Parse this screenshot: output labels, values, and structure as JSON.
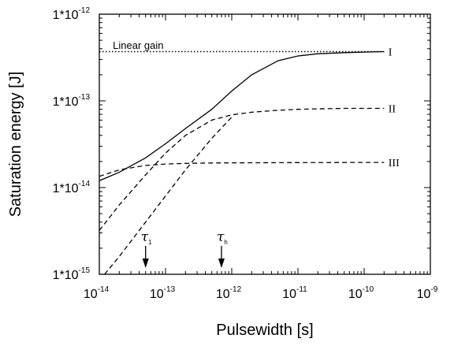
{
  "chart_data": {
    "type": "line",
    "xscale": "log",
    "yscale": "log",
    "xlim": [
      1e-14,
      1e-09
    ],
    "ylim": [
      1e-15,
      1e-12
    ],
    "xlabel": "Pulsewidth [s]",
    "ylabel": "Saturation energy [J]",
    "x_tick_labels": [
      {
        "value": 1e-14,
        "base": "10",
        "exp": "-14"
      },
      {
        "value": 1e-13,
        "base": "10",
        "exp": "-13"
      },
      {
        "value": 1e-12,
        "base": "10",
        "exp": "-12"
      },
      {
        "value": 1e-11,
        "base": "10",
        "exp": "-11"
      },
      {
        "value": 1e-10,
        "base": "10",
        "exp": "-10"
      },
      {
        "value": 1e-09,
        "base": "10",
        "exp": "-9"
      }
    ],
    "y_tick_labels": [
      {
        "value": 1e-15,
        "base": "1*10",
        "exp": "-15"
      },
      {
        "value": 1e-14,
        "base": "1*10",
        "exp": "-14"
      },
      {
        "value": 1e-13,
        "base": "1*10",
        "exp": "-13"
      },
      {
        "value": 1e-12,
        "base": "1*10",
        "exp": "-12"
      }
    ],
    "series": [
      {
        "name": "I",
        "style": "solid",
        "x": [
          1e-14,
          2e-14,
          5e-14,
          1e-13,
          2e-13,
          5e-13,
          1e-12,
          2e-12,
          5e-12,
          1e-11,
          2e-11,
          5e-11,
          1e-10,
          2e-10
        ],
        "y": [
          1.2e-14,
          1.5e-14,
          2.2e-14,
          3.2e-14,
          4.8e-14,
          8e-14,
          1.3e-13,
          2e-13,
          2.9e-13,
          3.3e-13,
          3.5e-13,
          3.6e-13,
          3.65e-13,
          3.7e-13
        ]
      },
      {
        "name": "II",
        "style": "dashed",
        "x": [
          1e-14,
          2e-14,
          5e-14,
          1e-13,
          2e-13,
          5e-13,
          1e-12,
          2e-12,
          5e-12,
          1e-11,
          2e-11,
          5e-11,
          1e-10,
          2e-10
        ],
        "y": [
          3.2e-15,
          6.3e-15,
          1.4e-14,
          2.5e-14,
          4e-14,
          6e-14,
          6.9e-14,
          7.4e-14,
          7.8e-14,
          8e-14,
          8.1e-14,
          8.2e-14,
          8.2e-14,
          8.2e-14
        ]
      },
      {
        "name": "III",
        "style": "dashed",
        "x": [
          1e-14,
          2e-14,
          5e-14,
          1e-13,
          2e-13,
          5e-13,
          1e-12,
          1e-11,
          1e-10,
          2e-10
        ],
        "y": [
          1.35e-14,
          1.6e-14,
          1.8e-14,
          1.87e-14,
          1.9e-14,
          1.92e-14,
          1.93e-14,
          1.94e-14,
          1.95e-14,
          1.95e-14
        ]
      },
      {
        "name": "",
        "style": "dashed",
        "x": [
          1.2e-14,
          2e-14,
          5e-14,
          1e-13,
          2e-13,
          5e-13,
          1e-12
        ],
        "y": [
          1e-15,
          1.6e-15,
          4e-15,
          8e-15,
          1.6e-14,
          3.7e-14,
          6.5e-14
        ]
      },
      {
        "name": "Linear gain",
        "style": "dotted",
        "x": [
          1e-14,
          2e-10
        ],
        "y": [
          3.7e-13,
          3.7e-13
        ]
      }
    ],
    "curve_labels": [
      {
        "text": "I",
        "x": 2.2e-10,
        "y": 3.7e-13
      },
      {
        "text": "II",
        "x": 2.2e-10,
        "y": 8.2e-14
      },
      {
        "text": "III",
        "x": 2.2e-10,
        "y": 1.95e-14
      }
    ],
    "annotations": [
      {
        "text": "Linear gain",
        "x": 1.6e-14,
        "y": 4.4e-13
      },
      {
        "symbol": "τ",
        "sub": "1",
        "x": 5e-14
      },
      {
        "symbol": "τ",
        "sub": "h",
        "x": 7e-13
      }
    ],
    "grid": false,
    "legend": "none"
  }
}
